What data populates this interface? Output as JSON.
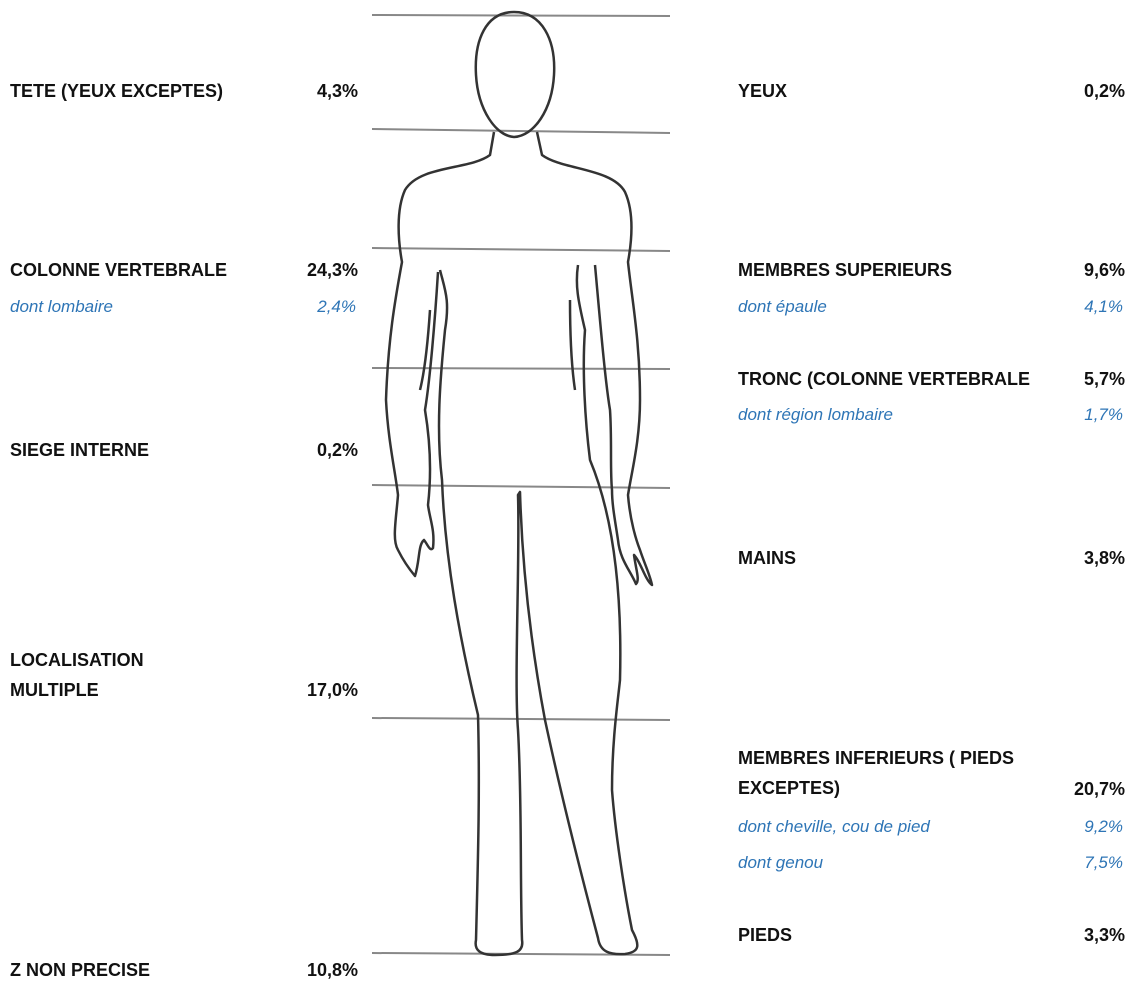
{
  "left": [
    {
      "label": "TETE (YEUX EXCEPTES)",
      "value": "4,3%"
    },
    {
      "label": "COLONNE VERTEBRALE",
      "value": "24,3%",
      "sub": [
        {
          "label": "dont lombaire",
          "value": "2,4%"
        }
      ]
    },
    {
      "label": "SIEGE INTERNE",
      "value": "0,2%"
    },
    {
      "label": "LOCALISATION MULTIPLE",
      "value": "17,0%"
    },
    {
      "label": "Z NON PRECISE",
      "value": "10,8%"
    }
  ],
  "right": [
    {
      "label": "YEUX",
      "value": "0,2%"
    },
    {
      "label": "MEMBRES SUPERIEURS",
      "value": "9,6%",
      "sub": [
        {
          "label": "dont épaule",
          "value": "4,1%"
        }
      ]
    },
    {
      "label": "TRONC (COLONNE VERTEBRALE",
      "value": "5,7%",
      "sub": [
        {
          "label": "dont région lombaire",
          "value": "1,7%"
        }
      ]
    },
    {
      "label": "MAINS",
      "value": "3,8%"
    },
    {
      "label": "MEMBRES INFERIEURS ( PIEDS EXCEPTES)",
      "value": "20,7%",
      "sub": [
        {
          "label": "dont cheville, cou de pied",
          "value": "9,2%"
        },
        {
          "label": "dont genou",
          "value": "7,5%"
        }
      ]
    },
    {
      "label": "PIEDS",
      "value": "3,3%"
    }
  ]
}
